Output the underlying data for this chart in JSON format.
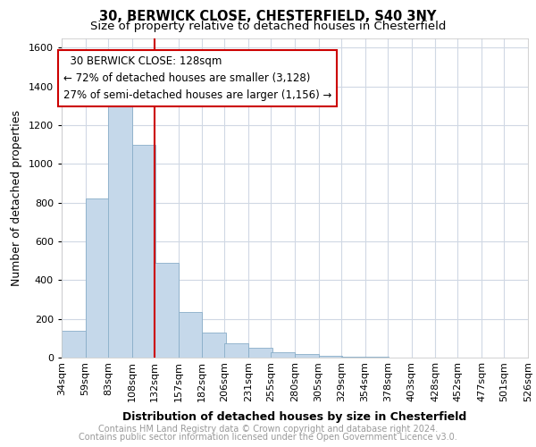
{
  "title_line1": "30, BERWICK CLOSE, CHESTERFIELD, S40 3NY",
  "title_line2": "Size of property relative to detached houses in Chesterfield",
  "xlabel": "Distribution of detached houses by size in Chesterfield",
  "ylabel": "Number of detached properties",
  "annotation_line1": "  30 BERWICK CLOSE: 128sqm  ",
  "annotation_line2": "← 72% of detached houses are smaller (3,128)",
  "annotation_line3": "27% of semi-detached houses are larger (1,156) →",
  "property_line_x": 132,
  "bins": [
    34,
    59,
    83,
    108,
    132,
    157,
    182,
    206,
    231,
    255,
    280,
    305,
    329,
    354,
    378,
    403,
    428,
    452,
    477,
    501,
    526
  ],
  "bin_labels": [
    "34sqm",
    "59sqm",
    "83sqm",
    "108sqm",
    "132sqm",
    "157sqm",
    "182sqm",
    "206sqm",
    "231sqm",
    "255sqm",
    "280sqm",
    "305sqm",
    "329sqm",
    "354sqm",
    "378sqm",
    "403sqm",
    "428sqm",
    "452sqm",
    "477sqm",
    "501sqm",
    "526sqm"
  ],
  "values": [
    140,
    820,
    1300,
    1100,
    490,
    235,
    130,
    75,
    50,
    30,
    20,
    10,
    5,
    3,
    2,
    2,
    1,
    1,
    1,
    0,
    0
  ],
  "bar_color": "#c5d8ea",
  "bar_edge_color": "#89aec8",
  "highlight_line_color": "#cc0000",
  "annotation_box_color": "#cc0000",
  "background_color": "#ffffff",
  "grid_color": "#d0d8e4",
  "ylim": [
    0,
    1650
  ],
  "yticks": [
    0,
    200,
    400,
    600,
    800,
    1000,
    1200,
    1400,
    1600
  ],
  "footer_line1": "Contains HM Land Registry data © Crown copyright and database right 2024.",
  "footer_line2": "Contains public sector information licensed under the Open Government Licence v3.0.",
  "title_fontsize": 10.5,
  "subtitle_fontsize": 9.5,
  "axis_label_fontsize": 9,
  "tick_fontsize": 8,
  "annotation_fontsize": 8.5,
  "footer_fontsize": 7
}
